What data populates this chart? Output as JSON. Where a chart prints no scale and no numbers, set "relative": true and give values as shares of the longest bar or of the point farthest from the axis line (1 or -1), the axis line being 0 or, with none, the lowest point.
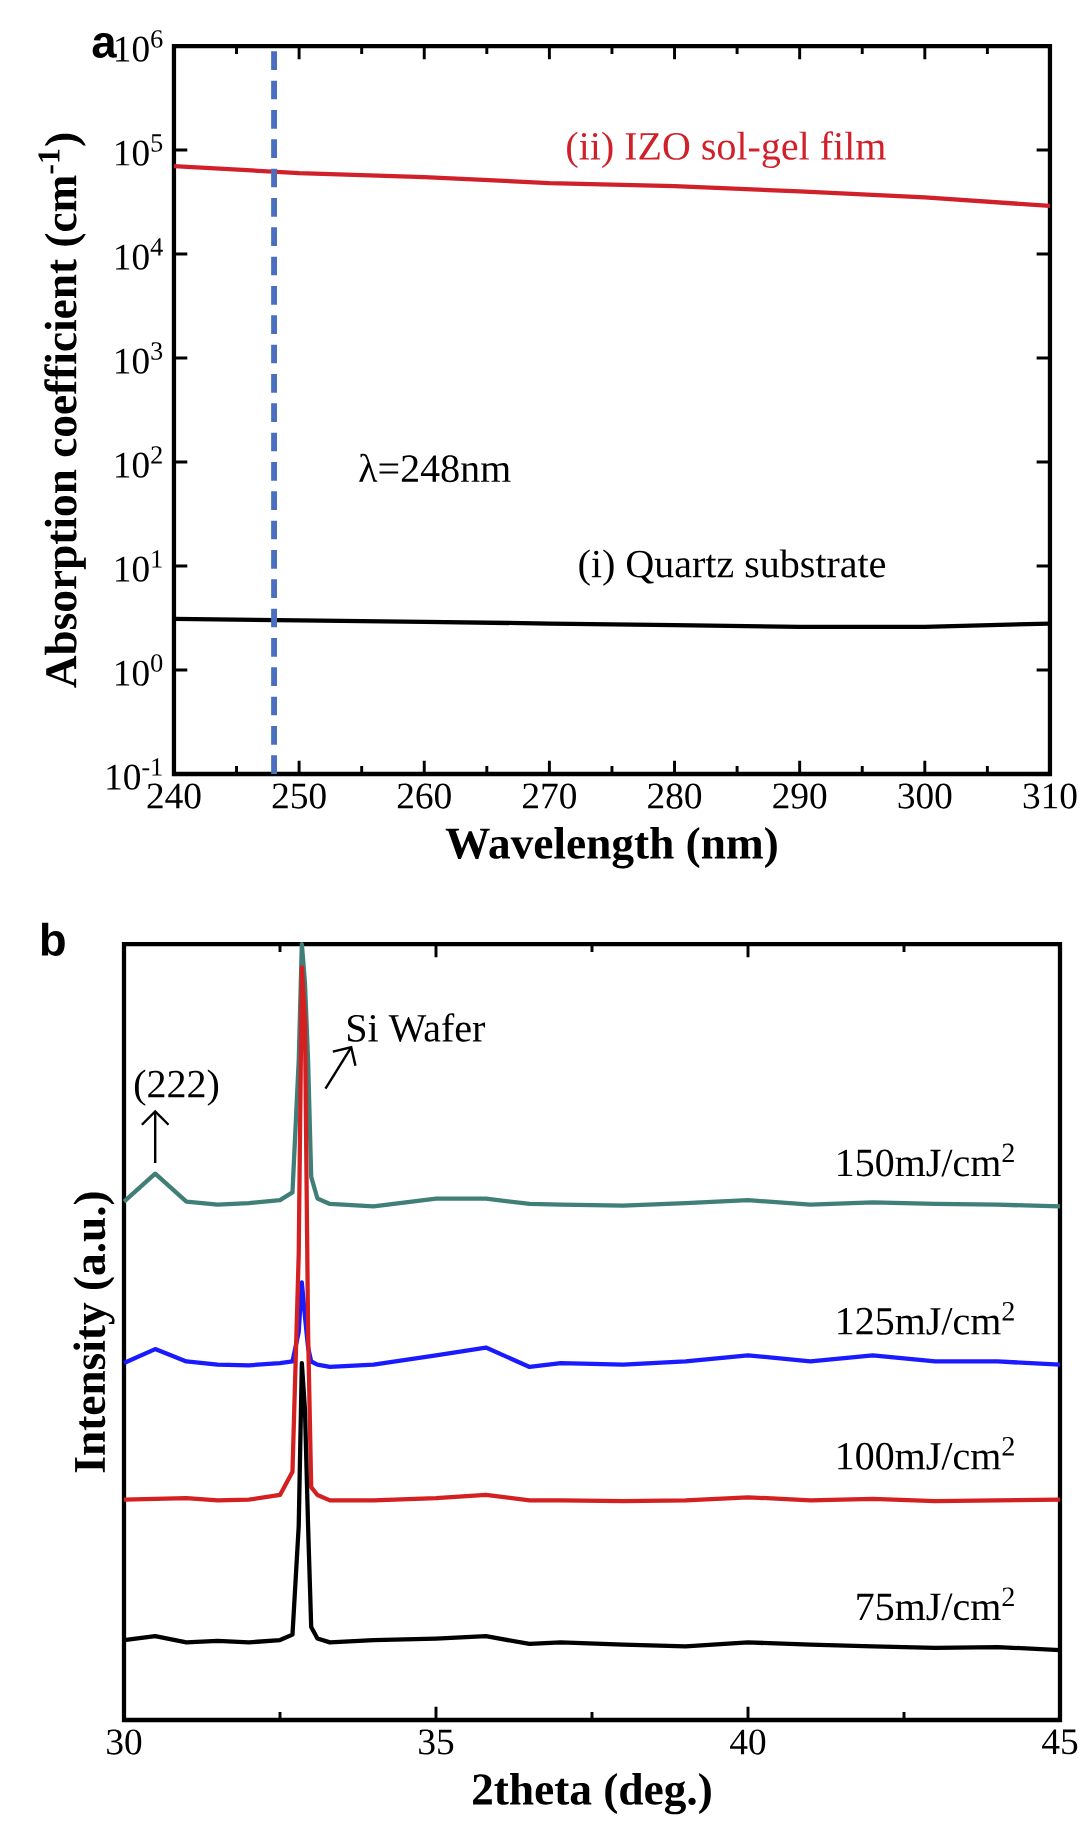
{
  "chart_data": [
    {
      "type": "line",
      "title": "a",
      "xlabel": "Wavelength (nm)",
      "ylabel": "Absorption coefficient (cm$^{-1}$)",
      "log": "y",
      "xlim": [
        240,
        310
      ],
      "xticks": [
        240,
        250,
        260,
        270,
        280,
        290,
        300,
        310
      ],
      "ylim": [
        0.1,
        1000000
      ],
      "yticks": [
        {
          "value": 0.1,
          "label": "10$^{-1}$"
        },
        {
          "value": 1,
          "label": "10$^{0}$"
        },
        {
          "value": 10,
          "label": "10$^{1}$"
        },
        {
          "value": 100,
          "label": "10$^{2}$"
        },
        {
          "value": 1000,
          "label": "10$^{3}$"
        },
        {
          "value": 10000,
          "label": "10$^{4}$"
        },
        {
          "value": 100000,
          "label": "10$^{5}$"
        },
        {
          "value": 1000000,
          "label": "10$^{6}$"
        }
      ],
      "x": [
        240,
        250,
        260,
        270,
        280,
        290,
        300,
        310
      ],
      "series": [
        {
          "name": "(ii)  IZO sol-gel film",
          "color": "#d0202a",
          "values": [
            70000,
            60000,
            55000,
            48000,
            45000,
            40000,
            35000,
            29000
          ]
        },
        {
          "name": "(i) Quartz substrate",
          "color": "#000000",
          "values": [
            3.1,
            3.0,
            2.9,
            2.8,
            2.7,
            2.6,
            2.6,
            2.8
          ]
        }
      ],
      "ref_lines": [
        {
          "axis": "x",
          "value": 248,
          "label": "λ=248nm",
          "color": "#4a6fc0",
          "line_style": "dashed"
        }
      ]
    },
    {
      "type": "line",
      "title": "b",
      "xlabel": "2theta (deg.)",
      "ylabel": "Intensity (a.u.)",
      "relative": true,
      "xlim": [
        30,
        45
      ],
      "xticks": [
        30,
        35,
        40,
        45
      ],
      "x": [
        30,
        30.5,
        31,
        31.5,
        32,
        32.5,
        32.7,
        32.8,
        32.85,
        32.9,
        32.95,
        33,
        33.1,
        33.3,
        34,
        35,
        35.8,
        36.5,
        37,
        38,
        39,
        40,
        41,
        42,
        43,
        44,
        45
      ],
      "series": [
        {
          "name": "150mJ/cm$^{2}$",
          "color": "#3f7f78",
          "values": [
            0.668,
            0.704,
            0.668,
            0.664,
            0.666,
            0.67,
            0.68,
            0.85,
            1.0,
            0.95,
            0.85,
            0.7,
            0.672,
            0.665,
            0.662,
            0.672,
            0.672,
            0.665,
            0.664,
            0.663,
            0.666,
            0.67,
            0.664,
            0.667,
            0.665,
            0.664,
            0.662
          ]
        },
        {
          "name": "125mJ/cm$^{2}$",
          "color": "#1a1aff",
          "values": [
            0.46,
            0.478,
            0.462,
            0.458,
            0.457,
            0.46,
            0.462,
            0.5,
            0.564,
            0.52,
            0.48,
            0.462,
            0.458,
            0.455,
            0.458,
            0.47,
            0.48,
            0.455,
            0.46,
            0.458,
            0.462,
            0.47,
            0.462,
            0.47,
            0.462,
            0.462,
            0.458
          ]
        },
        {
          "name": "100mJ/cm$^{2}$",
          "color": "#d42020",
          "values": [
            0.284,
            0.285,
            0.286,
            0.283,
            0.284,
            0.29,
            0.32,
            0.6,
            0.97,
            0.9,
            0.5,
            0.3,
            0.29,
            0.283,
            0.283,
            0.286,
            0.29,
            0.283,
            0.283,
            0.282,
            0.283,
            0.287,
            0.283,
            0.285,
            0.282,
            0.283,
            0.284
          ]
        },
        {
          "name": "75mJ/cm$^{2}$",
          "color": "#000000",
          "values": [
            0.103,
            0.108,
            0.1,
            0.102,
            0.1,
            0.103,
            0.11,
            0.25,
            0.46,
            0.4,
            0.25,
            0.12,
            0.105,
            0.1,
            0.103,
            0.105,
            0.108,
            0.098,
            0.1,
            0.097,
            0.095,
            0.1,
            0.097,
            0.095,
            0.093,
            0.094,
            0.09
          ]
        }
      ],
      "annotations": [
        {
          "text": "(222)",
          "x": 30.5,
          "y": 0.704
        },
        {
          "text": "Si Wafer",
          "x": 33.1,
          "y": 0.8
        }
      ]
    }
  ]
}
